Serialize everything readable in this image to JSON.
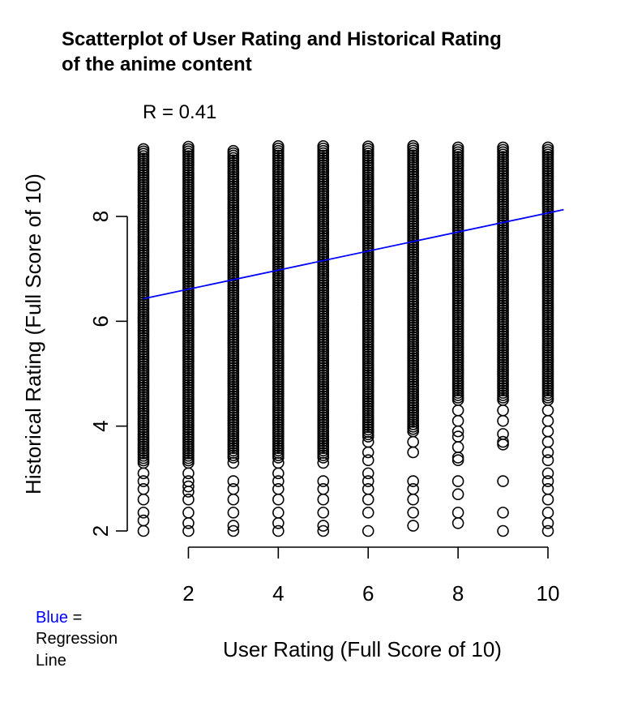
{
  "chart_data": {
    "type": "scatter",
    "title_lines": [
      "Scatterplot of User Rating and Historical Rating",
      "of the anime content"
    ],
    "annotation": "R = 0.41",
    "xlabel": "User Rating (Full Score of 10)",
    "ylabel": "Historical Rating (Full Score of 10)",
    "xlim": [
      1,
      10
    ],
    "ylim": [
      2,
      9.3
    ],
    "x_ticks": [
      2,
      4,
      6,
      8,
      10
    ],
    "y_ticks": [
      2,
      4,
      6,
      8
    ],
    "legend": {
      "color_word": "Blue",
      "rest": " =",
      "lines": [
        "Regression",
        "Line"
      ],
      "color": "#0000ff"
    },
    "regression": {
      "color": "#0000ff",
      "x": [
        1,
        10.35
      ],
      "y": [
        6.43,
        8.13
      ]
    },
    "point_color": "#000000",
    "series": [
      {
        "x": 1,
        "band": [
          3.3,
          9.3
        ],
        "outliers": [
          3.1,
          2.95,
          2.8,
          2.6,
          2.35,
          2.2,
          2.0
        ]
      },
      {
        "x": 2,
        "band": [
          3.3,
          9.35
        ],
        "outliers": [
          3.1,
          2.95,
          2.85,
          2.75,
          2.6,
          2.35,
          2.15,
          2.0
        ]
      },
      {
        "x": 3,
        "band": [
          3.4,
          9.25
        ],
        "outliers": [
          3.3,
          2.95,
          2.8,
          2.6,
          2.35,
          2.1,
          2.0
        ]
      },
      {
        "x": 4,
        "band": [
          3.4,
          9.35
        ],
        "outliers": [
          3.3,
          3.1,
          2.95,
          2.8,
          2.6,
          2.35,
          2.15,
          2.0
        ]
      },
      {
        "x": 5,
        "band": [
          3.4,
          9.35
        ],
        "outliers": [
          3.3,
          2.95,
          2.8,
          2.6,
          2.35,
          2.1,
          2.0
        ]
      },
      {
        "x": 6,
        "band": [
          3.8,
          9.35
        ],
        "outliers": [
          3.7,
          3.5,
          3.35,
          3.1,
          2.95,
          2.8,
          2.6,
          2.35,
          2.0
        ]
      },
      {
        "x": 7,
        "band": [
          3.9,
          9.35
        ],
        "outliers": [
          3.7,
          3.5,
          2.95,
          2.8,
          2.6,
          2.35,
          2.1
        ]
      },
      {
        "x": 8,
        "band": [
          4.5,
          9.35
        ],
        "outliers": [
          4.3,
          4.1,
          3.9,
          3.8,
          3.6,
          3.4,
          3.35,
          2.95,
          2.7,
          2.35,
          2.15
        ]
      },
      {
        "x": 9,
        "band": [
          4.5,
          9.35
        ],
        "outliers": [
          4.3,
          4.1,
          3.85,
          3.7,
          3.65,
          2.95,
          2.35,
          2.0
        ]
      },
      {
        "x": 10,
        "band": [
          4.5,
          9.35
        ],
        "outliers": [
          4.3,
          4.1,
          3.9,
          3.7,
          3.5,
          3.35,
          3.1,
          2.95,
          2.8,
          2.6,
          2.35,
          2.15,
          2.0
        ]
      }
    ]
  }
}
